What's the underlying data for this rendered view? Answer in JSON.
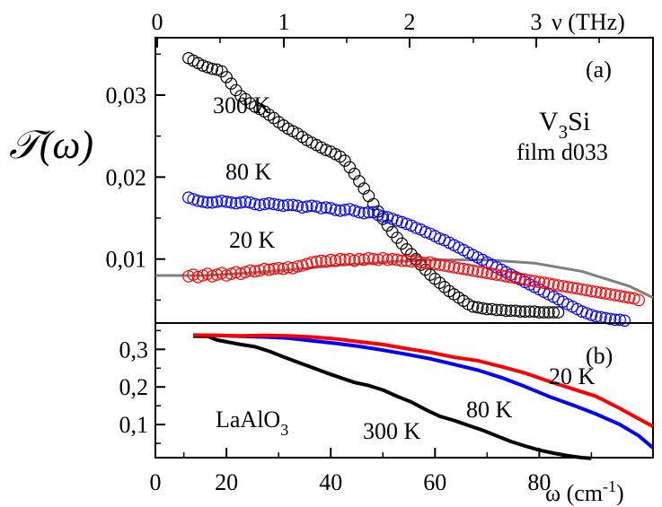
{
  "chart_data": [
    {
      "id": "a",
      "type": "scatter",
      "panel_label": "(a)",
      "ylabel_main": "𝒯(ω)",
      "top_axis": {
        "label": "ν (THz)",
        "ticks": [
          0,
          1,
          2,
          3
        ],
        "tick_labels": [
          "0",
          "1",
          "2",
          "3"
        ]
      },
      "xlim": [
        0,
        105
      ],
      "ylim": [
        0.0022,
        0.037
      ],
      "yticks": [
        0.01,
        0.02,
        0.03
      ],
      "ytick_labels": [
        "0,01",
        "0,02",
        "0,03"
      ],
      "texts": {
        "material": "V",
        "material_sub": "3",
        "material_tail": "Si",
        "film": "film d033"
      },
      "series": [
        {
          "name": "300 K",
          "color": "#000000",
          "x": [
            7,
            8,
            9,
            10,
            11,
            12,
            13,
            14,
            15,
            16,
            17,
            18,
            19,
            20,
            21,
            22,
            23,
            24,
            25,
            26,
            27,
            28,
            29,
            30,
            31,
            32,
            33,
            34,
            35,
            36,
            37,
            38,
            39,
            40,
            41,
            42,
            43,
            44,
            45,
            46,
            47,
            48,
            49,
            50,
            51,
            52,
            53,
            54,
            55,
            56,
            57,
            58,
            59,
            60,
            61,
            62,
            63,
            64,
            65,
            66,
            67,
            68,
            69,
            70,
            71,
            72,
            73,
            74,
            75,
            76,
            77,
            78,
            79,
            80,
            81,
            82,
            83,
            84,
            85
          ],
          "y": [
            0.0345,
            0.0342,
            0.0339,
            0.0336,
            0.0334,
            0.0332,
            0.0331,
            0.0329,
            0.0322,
            0.0314,
            0.0306,
            0.0299,
            0.0295,
            0.029,
            0.0286,
            0.0283,
            0.028,
            0.0276,
            0.0272,
            0.0267,
            0.0263,
            0.0259,
            0.0256,
            0.0253,
            0.0249,
            0.0245,
            0.0242,
            0.0239,
            0.0236,
            0.0233,
            0.0231,
            0.0228,
            0.0225,
            0.022,
            0.0212,
            0.0204,
            0.0195,
            0.0186,
            0.0177,
            0.0167,
            0.0158,
            0.0149,
            0.0141,
            0.0133,
            0.0126,
            0.0119,
            0.0112,
            0.0106,
            0.01,
            0.0093,
            0.0087,
            0.0081,
            0.0076,
            0.0071,
            0.0066,
            0.0061,
            0.0057,
            0.0053,
            0.0049,
            0.0045,
            0.0042,
            0.0041,
            0.004,
            0.0039,
            0.0039,
            0.0038,
            0.0038,
            0.0037,
            0.0037,
            0.0037,
            0.0036,
            0.0036,
            0.0036,
            0.0036,
            0.0035,
            0.0035,
            0.0035,
            0.0035,
            0.0035
          ]
        },
        {
          "name": "80 K",
          "color": "#0000ff",
          "x": [
            7,
            8,
            9,
            10,
            11,
            12,
            13,
            14,
            15,
            16,
            17,
            18,
            19,
            20,
            21,
            22,
            23,
            24,
            25,
            26,
            27,
            28,
            29,
            30,
            31,
            32,
            33,
            34,
            35,
            36,
            37,
            38,
            39,
            40,
            41,
            42,
            43,
            44,
            45,
            46,
            47,
            48,
            49,
            50,
            51,
            52,
            53,
            54,
            55,
            56,
            57,
            58,
            59,
            60,
            61,
            62,
            63,
            64,
            65,
            66,
            67,
            68,
            69,
            70,
            71,
            72,
            73,
            74,
            75,
            76,
            77,
            78,
            79,
            80,
            81,
            82,
            83,
            84,
            85,
            86,
            87,
            88,
            89,
            90,
            91,
            92,
            93,
            94,
            95,
            96,
            97,
            98,
            99
          ],
          "y": [
            0.0175,
            0.0173,
            0.0171,
            0.017,
            0.0169,
            0.0169,
            0.017,
            0.0171,
            0.017,
            0.0169,
            0.0168,
            0.0169,
            0.017,
            0.0169,
            0.0167,
            0.0166,
            0.0167,
            0.0168,
            0.0167,
            0.0166,
            0.0165,
            0.0166,
            0.0166,
            0.0165,
            0.0163,
            0.0164,
            0.0165,
            0.0164,
            0.0162,
            0.0163,
            0.0162,
            0.016,
            0.0159,
            0.016,
            0.0161,
            0.0159,
            0.0157,
            0.0156,
            0.0157,
            0.0157,
            0.0154,
            0.0152,
            0.0151,
            0.0149,
            0.0147,
            0.0145,
            0.0143,
            0.0141,
            0.0138,
            0.0136,
            0.0133,
            0.0131,
            0.0128,
            0.0125,
            0.0123,
            0.012,
            0.0117,
            0.0114,
            0.0111,
            0.0108,
            0.0105,
            0.0102,
            0.0099,
            0.0096,
            0.0093,
            0.009,
            0.0087,
            0.0084,
            0.0081,
            0.0078,
            0.0075,
            0.0072,
            0.0069,
            0.0066,
            0.0063,
            0.006,
            0.0057,
            0.0054,
            0.0051,
            0.0048,
            0.0045,
            0.0042,
            0.0039,
            0.0036,
            0.0034,
            0.0032,
            0.003,
            0.0029,
            0.0028,
            0.0027,
            0.0026,
            0.0026,
            0.0025
          ]
        },
        {
          "name": "20 K",
          "color": "#ff0000",
          "x": [
            7,
            8,
            9,
            10,
            11,
            12,
            13,
            14,
            15,
            16,
            17,
            18,
            19,
            20,
            21,
            22,
            23,
            24,
            25,
            26,
            27,
            28,
            29,
            30,
            31,
            32,
            33,
            34,
            35,
            36,
            37,
            38,
            39,
            40,
            41,
            42,
            43,
            44,
            45,
            46,
            47,
            48,
            49,
            50,
            51,
            52,
            53,
            54,
            55,
            56,
            57,
            58,
            59,
            60,
            61,
            62,
            63,
            64,
            65,
            66,
            67,
            68,
            69,
            70,
            71,
            72,
            73,
            74,
            75,
            76,
            77,
            78,
            79,
            80,
            81,
            82,
            83,
            84,
            85,
            86,
            87,
            88,
            89,
            90,
            91,
            92,
            93,
            94,
            95,
            96,
            97,
            98,
            99,
            100,
            101,
            102
          ],
          "y": [
            0.0079,
            0.0081,
            0.0078,
            0.008,
            0.0082,
            0.0079,
            0.0081,
            0.0083,
            0.008,
            0.0082,
            0.0084,
            0.0082,
            0.0084,
            0.0086,
            0.0085,
            0.0086,
            0.0088,
            0.0087,
            0.0088,
            0.0089,
            0.0088,
            0.009,
            0.0089,
            0.0091,
            0.0092,
            0.0094,
            0.0096,
            0.0097,
            0.0098,
            0.0097,
            0.0099,
            0.0098,
            0.01,
            0.0099,
            0.01,
            0.0098,
            0.01,
            0.0099,
            0.0101,
            0.01,
            0.0099,
            0.0101,
            0.0099,
            0.01,
            0.0099,
            0.0098,
            0.0098,
            0.0097,
            0.0098,
            0.0096,
            0.0095,
            0.0096,
            0.0094,
            0.0093,
            0.0092,
            0.0091,
            0.009,
            0.0089,
            0.0088,
            0.0087,
            0.0086,
            0.0085,
            0.0084,
            0.0083,
            0.0082,
            0.0081,
            0.008,
            0.0079,
            0.0078,
            0.0077,
            0.0076,
            0.0075,
            0.0074,
            0.0073,
            0.0072,
            0.0071,
            0.007,
            0.0069,
            0.0068,
            0.0067,
            0.0066,
            0.0065,
            0.0064,
            0.0063,
            0.0062,
            0.0061,
            0.006,
            0.0059,
            0.0058,
            0.0057,
            0.0056,
            0.0055,
            0.0054,
            0.0053,
            0.0052,
            0.005
          ]
        }
      ],
      "fit_line": {
        "color": "#808080",
        "x": [
          0,
          10,
          20,
          30,
          40,
          50,
          60,
          70,
          80,
          90,
          100,
          105
        ],
        "y": [
          0.008,
          0.008,
          0.0083,
          0.0088,
          0.0093,
          0.0097,
          0.0099,
          0.0099,
          0.0095,
          0.0085,
          0.0067,
          0.0053
        ]
      }
    },
    {
      "id": "b",
      "type": "line",
      "panel_label": "(b)",
      "xlabel": "ω (cm",
      "xlabel_sup": "-1",
      "xlabel_tail": ")",
      "xlim": [
        -8,
        97
      ],
      "ylim": [
        0.012,
        0.37
      ],
      "xticks": [
        -8,
        7,
        29,
        51,
        73
      ],
      "xtick_labels": [
        "0",
        "20",
        "40",
        "60",
        "80"
      ],
      "yticks": [
        0.1,
        0.2,
        0.3
      ],
      "ytick_labels": [
        "0,1",
        "0,2",
        "0,3"
      ],
      "texts": {
        "material": "LaAlO",
        "material_sub": "3"
      },
      "series": [
        {
          "name": "300 K",
          "color": "#000000",
          "x": [
            0,
            3,
            5,
            7,
            10,
            13,
            16,
            19,
            22,
            25,
            28,
            31,
            34,
            37,
            40,
            43,
            46,
            49,
            52,
            55,
            58,
            61,
            64,
            67,
            70,
            73,
            76,
            79,
            82,
            84
          ],
          "y": [
            0.335,
            0.335,
            0.325,
            0.32,
            0.313,
            0.307,
            0.295,
            0.28,
            0.266,
            0.252,
            0.238,
            0.225,
            0.212,
            0.204,
            0.192,
            0.175,
            0.16,
            0.14,
            0.122,
            0.111,
            0.098,
            0.085,
            0.07,
            0.055,
            0.043,
            0.032,
            0.024,
            0.017,
            0.012,
            0.01
          ]
        },
        {
          "name": "80 K",
          "color": "#0000ff",
          "x": [
            0,
            5,
            10,
            15,
            20,
            25,
            30,
            35,
            40,
            45,
            50,
            55,
            60,
            65,
            70,
            75,
            80,
            85,
            90,
            94,
            97
          ],
          "y": [
            0.338,
            0.337,
            0.335,
            0.333,
            0.33,
            0.323,
            0.316,
            0.308,
            0.298,
            0.287,
            0.275,
            0.26,
            0.245,
            0.225,
            0.201,
            0.175,
            0.152,
            0.128,
            0.1,
            0.07,
            0.038
          ]
        },
        {
          "name": "20 K",
          "color": "#ff0000",
          "x": [
            0,
            5,
            10,
            15,
            20,
            25,
            30,
            35,
            40,
            45,
            50,
            55,
            60,
            65,
            70,
            75,
            80,
            85,
            90,
            94,
            97
          ],
          "y": [
            0.338,
            0.337,
            0.336,
            0.337,
            0.336,
            0.333,
            0.328,
            0.32,
            0.313,
            0.302,
            0.292,
            0.279,
            0.27,
            0.254,
            0.237,
            0.215,
            0.195,
            0.175,
            0.143,
            0.115,
            0.095
          ]
        }
      ]
    }
  ]
}
